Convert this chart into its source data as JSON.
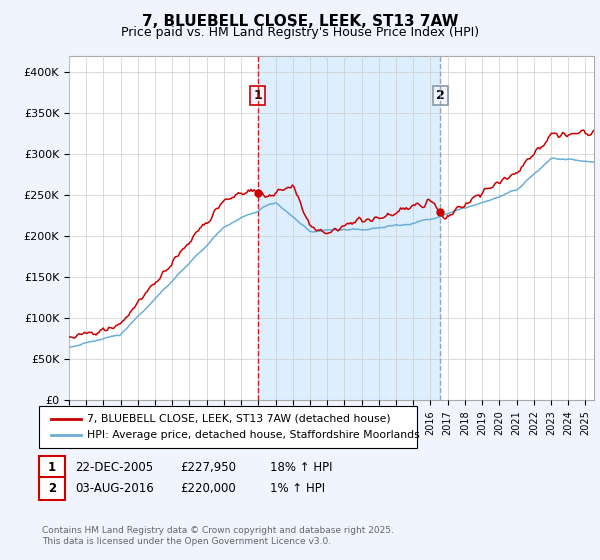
{
  "title": "7, BLUEBELL CLOSE, LEEK, ST13 7AW",
  "subtitle": "Price paid vs. HM Land Registry's House Price Index (HPI)",
  "legend_line1": "7, BLUEBELL CLOSE, LEEK, ST13 7AW (detached house)",
  "legend_line2": "HPI: Average price, detached house, Staffordshire Moorlands",
  "annotation1_label": "1",
  "annotation1_date": "22-DEC-2005",
  "annotation1_price": "£227,950",
  "annotation1_hpi": "18% ↑ HPI",
  "annotation2_label": "2",
  "annotation2_date": "03-AUG-2016",
  "annotation2_price": "£220,000",
  "annotation2_hpi": "1% ↑ HPI",
  "footer": "Contains HM Land Registry data © Crown copyright and database right 2025.\nThis data is licensed under the Open Government Licence v3.0.",
  "sale1_year": 2005.97,
  "sale2_year": 2016.58,
  "hpi_color": "#6baed6",
  "price_color": "#cc0000",
  "vline1_color": "#cc0000",
  "vline2_color": "#8899aa",
  "shade_color": "#ddeeff",
  "background_color": "#f0f4ff",
  "plot_bg_color": "#ffffff",
  "ylim": [
    0,
    420000
  ],
  "xlim_start": 1995.0,
  "xlim_end": 2025.5
}
